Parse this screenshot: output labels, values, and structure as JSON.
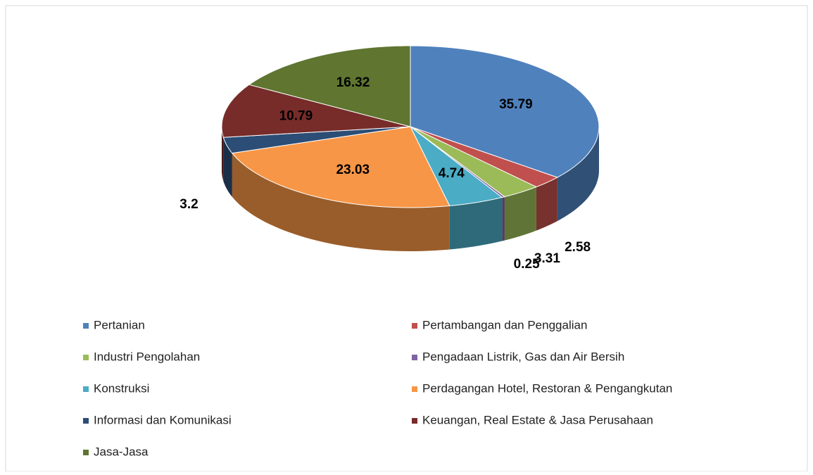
{
  "chart_data": {
    "type": "pie",
    "categories": [
      "Pertanian",
      "Pertambangan dan Penggalian",
      "Industri Pengolahan",
      "Pengadaan Listrik, Gas dan Air Bersih",
      "Konstruksi",
      "Perdagangan Hotel, Restoran & Pengangkutan",
      "Informasi dan Komunikasi",
      "Keuangan, Real Estate & Jasa Perusahaan",
      "Jasa-Jasa"
    ],
    "values": [
      35.79,
      2.58,
      3.31,
      0.25,
      4.74,
      23.03,
      3.2,
      10.79,
      16.32
    ],
    "colors": [
      "#4f81bd",
      "#c0504d",
      "#9bbb59",
      "#8064a2",
      "#4bacc6",
      "#f79646",
      "#2c4d75",
      "#772c2a",
      "#5f7530"
    ],
    "legend": "bottom"
  }
}
